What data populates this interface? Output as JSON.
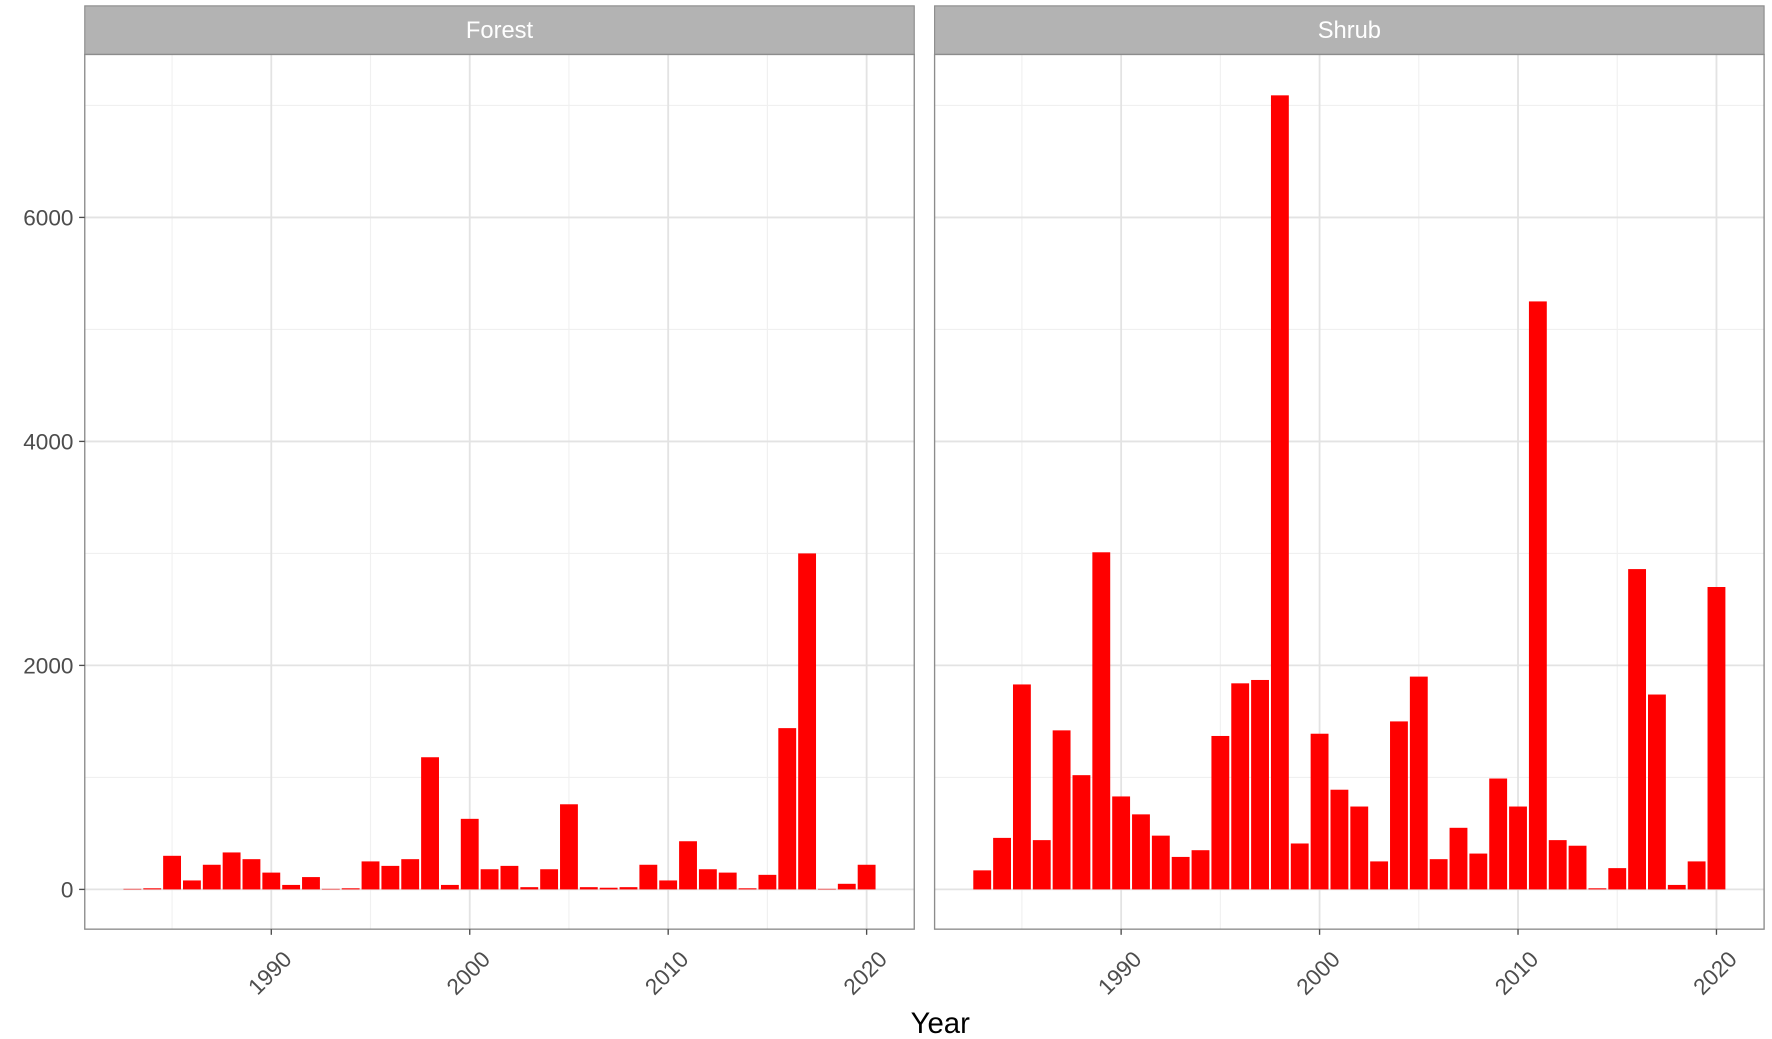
{
  "chart_data": {
    "type": "bar",
    "xlabel": "Year",
    "color": "#ff0000",
    "grid": true,
    "xlim": [
      1980.6,
      2022.4
    ],
    "xticks": [
      1990,
      2000,
      2010,
      2020
    ],
    "xminorticks": [
      1985,
      1995,
      2005,
      2015
    ],
    "ylim": [
      -355,
      7455
    ],
    "yticks": [
      0,
      2000,
      4000,
      6000
    ],
    "yminorticks": [
      1000,
      3000,
      5000,
      7000
    ],
    "panels": [
      {
        "title": "Forest",
        "x": [
          1983,
          1984,
          1985,
          1986,
          1987,
          1988,
          1989,
          1990,
          1991,
          1992,
          1993,
          1994,
          1995,
          1996,
          1997,
          1998,
          1999,
          2000,
          2001,
          2002,
          2003,
          2004,
          2005,
          2006,
          2007,
          2008,
          2009,
          2010,
          2011,
          2012,
          2013,
          2014,
          2015,
          2016,
          2017,
          2018,
          2019,
          2020
        ],
        "values": [
          5,
          10,
          300,
          80,
          220,
          330,
          270,
          150,
          40,
          110,
          5,
          10,
          250,
          210,
          270,
          1180,
          40,
          630,
          180,
          210,
          20,
          180,
          760,
          20,
          15,
          20,
          220,
          80,
          430,
          180,
          150,
          10,
          130,
          1440,
          3000,
          5,
          50,
          220
        ]
      },
      {
        "title": "Shrub",
        "x": [
          1983,
          1984,
          1985,
          1986,
          1987,
          1988,
          1989,
          1990,
          1991,
          1992,
          1993,
          1994,
          1995,
          1996,
          1997,
          1998,
          1999,
          2000,
          2001,
          2002,
          2003,
          2004,
          2005,
          2006,
          2007,
          2008,
          2009,
          2010,
          2011,
          2012,
          2013,
          2014,
          2015,
          2016,
          2017,
          2018,
          2019,
          2020
        ],
        "values": [
          170,
          460,
          1830,
          440,
          1420,
          1020,
          3010,
          830,
          670,
          480,
          290,
          350,
          1370,
          1840,
          1870,
          7090,
          410,
          1390,
          890,
          740,
          250,
          1500,
          1900,
          270,
          550,
          320,
          990,
          740,
          5250,
          440,
          390,
          10,
          190,
          2860,
          1740,
          40,
          250,
          2700
        ]
      }
    ]
  }
}
